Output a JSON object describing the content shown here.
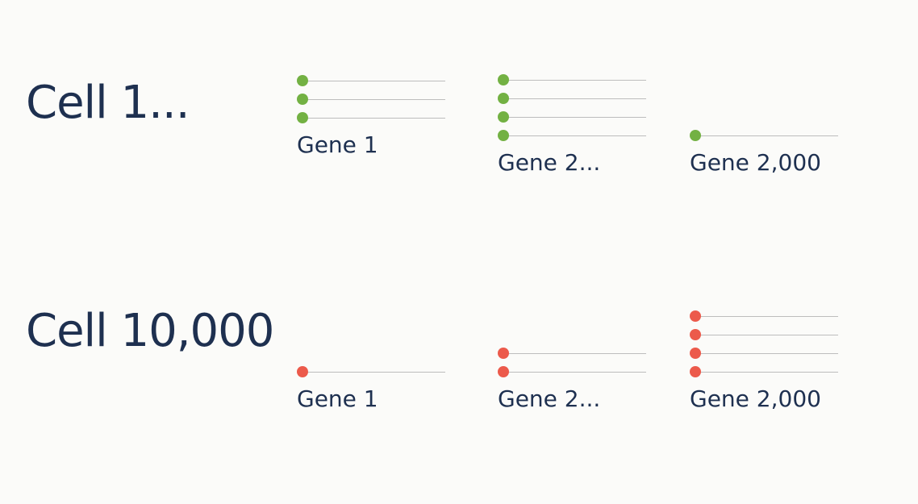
{
  "colors": {
    "background": "#fbfbf9",
    "text": "#1e3050",
    "line": "#bdbdbd",
    "cell_1_dot": "#73b143",
    "cell_10000_dot": "#ec5a4b"
  },
  "rows": [
    {
      "cell_label": "Cell 1...",
      "dot_color": "#73b143",
      "genes": [
        {
          "label": "Gene 1",
          "molecules": 3
        },
        {
          "label": "Gene 2...",
          "molecules": 4
        },
        {
          "label": "Gene 2,000",
          "molecules": 1
        }
      ]
    },
    {
      "cell_label": "Cell 10,000",
      "dot_color": "#ec5a4b",
      "genes": [
        {
          "label": "Gene 1",
          "molecules": 1
        },
        {
          "label": "Gene 2...",
          "molecules": 2
        },
        {
          "label": "Gene 2,000",
          "molecules": 4
        }
      ]
    }
  ]
}
